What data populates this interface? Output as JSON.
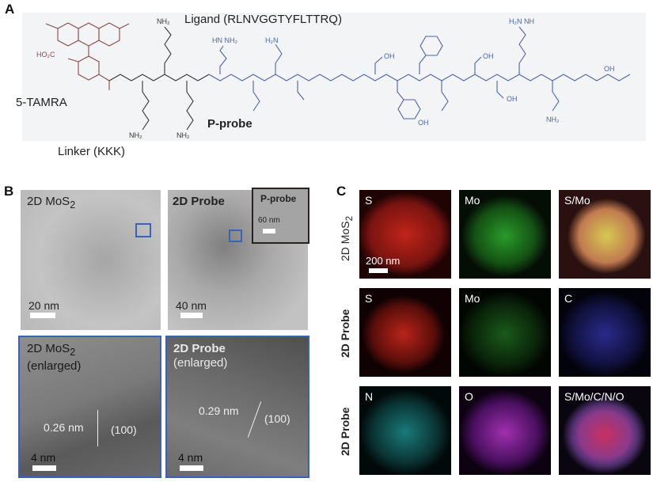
{
  "panel_a": {
    "label": "A",
    "ligand": "Ligand (RLNVGGTYFLTTRQ)",
    "dye": "5-TAMRA",
    "probe": "P-probe",
    "linker": "Linker (KKK)",
    "colors": {
      "dye": "#8b4a46",
      "linker": "#333333",
      "ligand": "#4a64a8"
    }
  },
  "panel_b": {
    "label": "B",
    "images": [
      {
        "title": "2D MoS",
        "sub": "2",
        "scale": "20 nm"
      },
      {
        "title": "2D Probe",
        "scale": "40 nm",
        "inset_title": "P-probe",
        "inset_scale": "60 nm"
      },
      {
        "title": "2D MoS",
        "sub": "2",
        "title2": "(enlarged)",
        "scale": "4 nm",
        "spacing": "0.26 nm",
        "plane": "(100)"
      },
      {
        "title": "2D Probe",
        "title2": "(enlarged)",
        "scale": "4 nm",
        "spacing": "0.29 nm",
        "plane": "(100)"
      }
    ]
  },
  "panel_c": {
    "label": "C",
    "rows": [
      {
        "label": "2D MoS",
        "sub": "2",
        "maps": [
          "S",
          "Mo",
          "S/Mo"
        ],
        "scale": "200 nm"
      },
      {
        "label": "2D Probe",
        "maps": [
          "S",
          "Mo",
          "C"
        ]
      },
      {
        "label": "2D Probe",
        "maps": [
          "N",
          "O",
          "S/Mo/C/N/O"
        ]
      }
    ]
  }
}
